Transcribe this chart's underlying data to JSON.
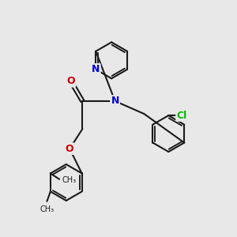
{
  "bg_color": "#e8e8e8",
  "bond_color": "#1a1a1a",
  "bond_width": 1.5,
  "atom_colors": {
    "N": "#0000cc",
    "O": "#cc0000",
    "Cl": "#00bb00",
    "C": "#1a1a1a"
  },
  "font_size_atom": 9,
  "figsize": [
    3.0,
    3.0
  ],
  "dpi": 100,
  "xlim": [
    0,
    10
  ],
  "ylim": [
    0,
    10
  ]
}
